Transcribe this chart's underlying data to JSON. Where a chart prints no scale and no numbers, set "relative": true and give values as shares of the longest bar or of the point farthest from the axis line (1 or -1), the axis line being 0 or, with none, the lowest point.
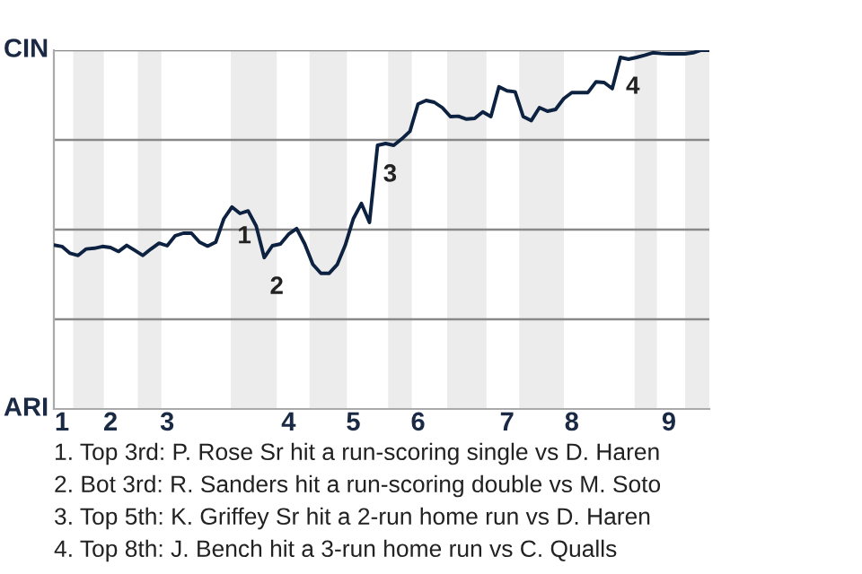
{
  "chart_data": {
    "type": "line",
    "relative": true,
    "categories": [
      null,
      "1",
      null,
      null,
      null,
      null,
      null,
      "2",
      null,
      null,
      null,
      null,
      null,
      null,
      "3",
      null,
      null,
      null,
      null,
      null,
      null,
      null,
      null,
      null,
      null,
      null,
      null,
      null,
      null,
      "4",
      null,
      null,
      null,
      null,
      null,
      null,
      null,
      "5",
      null,
      null,
      null,
      null,
      null,
      null,
      null,
      "6",
      null,
      null,
      null,
      null,
      null,
      null,
      null,
      null,
      null,
      null,
      "7",
      null,
      null,
      null,
      null,
      null,
      null,
      null,
      "8",
      null,
      null,
      null,
      null,
      null,
      null,
      null,
      null,
      null,
      null,
      null,
      "9",
      null,
      null,
      null,
      null,
      null
    ],
    "series": [
      {
        "color": "#0d2240",
        "values": [
          0.457,
          0.453,
          0.434,
          0.428,
          0.446,
          0.448,
          0.453,
          0.45,
          0.439,
          0.456,
          0.442,
          0.428,
          0.446,
          0.462,
          0.455,
          0.483,
          0.49,
          0.49,
          0.465,
          0.454,
          0.465,
          0.53,
          0.563,
          0.545,
          0.552,
          0.51,
          0.422,
          0.455,
          0.46,
          0.487,
          0.503,
          0.46,
          0.403,
          0.378,
          0.378,
          0.402,
          0.456,
          0.53,
          0.573,
          0.52,
          0.735,
          0.74,
          0.735,
          0.753,
          0.774,
          0.85,
          0.86,
          0.855,
          0.84,
          0.815,
          0.816,
          0.808,
          0.81,
          0.828,
          0.815,
          0.898,
          0.887,
          0.884,
          0.815,
          0.804,
          0.84,
          0.83,
          0.835,
          0.865,
          0.882,
          0.882,
          0.882,
          0.912,
          0.91,
          0.893,
          0.98,
          0.975,
          0.98,
          0.986,
          0.993,
          0.991,
          0.99,
          0.99,
          0.99,
          0.993,
          1,
          1
        ]
      }
    ],
    "marker": "none",
    "line_style": "solid",
    "ref_lines": [
      {
        "axis": "y",
        "value": 0.25,
        "color": "#888888"
      },
      {
        "axis": "y",
        "value": 0.5,
        "color": "#888888"
      },
      {
        "axis": "y",
        "value": 0.75,
        "color": "#888888"
      },
      {
        "axis": "y",
        "value": 1,
        "color": "#888888"
      }
    ],
    "annotations": [
      {
        "text": "1",
        "y": 0.563
      },
      {
        "text": "2",
        "y": 0.422
      },
      {
        "text": "3",
        "y": 0.735
      },
      {
        "text": "4",
        "y": 0.98
      },
      "CIN",
      "ARI",
      "1. Top 3rd: P. Rose Sr hit a run-scoring single vs D. Haren",
      "2. Bot 3rd: R. Sanders hit a run-scoring double vs M. Soto",
      "3. Top 5th: K. Griffey Sr hit a 2-run home run vs D. Haren",
      "4. Top 8th: J. Bench hit a 3-run home run vs C. Qualls"
    ]
  }
}
